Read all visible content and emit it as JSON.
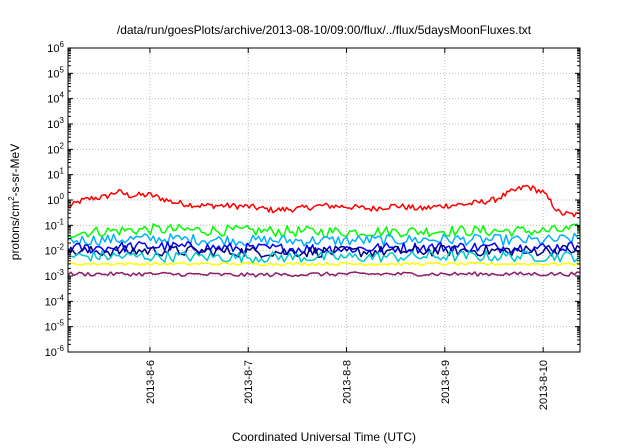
{
  "chart_data": {
    "type": "line",
    "title": "/data/run/goesPlots/archive/2013-08-10/09:00/flux/../flux/5daysMoonFluxes.txt",
    "xlabel": "Coordinated Universal Time (UTC)",
    "ylabel": "protons/cm2-s-sr-MeV",
    "yscale": "log",
    "ylim": [
      1e-06,
      1000000.0
    ],
    "y_ticks": [
      {
        "exp": "-6"
      },
      {
        "exp": "-5"
      },
      {
        "exp": "-4"
      },
      {
        "exp": "-3"
      },
      {
        "exp": "-2"
      },
      {
        "exp": "-1"
      },
      {
        "exp": "0"
      },
      {
        "exp": "1"
      },
      {
        "exp": "2"
      },
      {
        "exp": "3"
      },
      {
        "exp": "4"
      },
      {
        "exp": "5"
      },
      {
        "exp": "6"
      }
    ],
    "y_tick_base": "10",
    "xlim": [
      "2013-08-05T04:00",
      "2013-08-10T09:00"
    ],
    "x_ticks": [
      "2013-8-6",
      "2013-8-7",
      "2013-8-8",
      "2013-8-9",
      "2013-8-10"
    ],
    "x_tick_dates": [
      "2013-08-06T00:00",
      "2013-08-07T00:00",
      "2013-08-08T00:00",
      "2013-08-09T00:00",
      "2013-08-10T00:00"
    ],
    "grid": true,
    "legend": "none",
    "series": [
      {
        "color": "#ff0000",
        "width": 1.5,
        "x": [
          "2013-08-05T04:00",
          "2013-08-05T07:00",
          "2013-08-05T10:00",
          "2013-08-05T13:00",
          "2013-08-05T16:00",
          "2013-08-05T19:00",
          "2013-08-06T00:00",
          "2013-08-06T06:00",
          "2013-08-06T12:00",
          "2013-08-06T18:00",
          "2013-08-07T00:00",
          "2013-08-07T06:00",
          "2013-08-07T12:00",
          "2013-08-07T18:00",
          "2013-08-08T00:00",
          "2013-08-08T06:00",
          "2013-08-08T12:00",
          "2013-08-08T18:00",
          "2013-08-09T00:00",
          "2013-08-09T06:00",
          "2013-08-09T12:00",
          "2013-08-09T16:00",
          "2013-08-09T20:00",
          "2013-08-10T00:00",
          "2013-08-10T04:00",
          "2013-08-10T09:00"
        ],
        "values": [
          0.5,
          0.9,
          1.2,
          1.3,
          2.2,
          1.5,
          1.6,
          0.8,
          0.6,
          0.6,
          0.55,
          0.4,
          0.45,
          0.6,
          0.55,
          0.45,
          0.6,
          0.45,
          0.6,
          0.7,
          1.0,
          2.0,
          3.5,
          2.0,
          0.3,
          0.25
        ]
      },
      {
        "color": "#00ff00",
        "width": 1.5,
        "x": [
          "2013-08-05T04:00",
          "2013-08-06T00:00",
          "2013-08-07T00:00",
          "2013-08-08T00:00",
          "2013-08-09T00:00",
          "2013-08-10T00:00",
          "2013-08-10T09:00"
        ],
        "values": [
          0.05,
          0.07,
          0.06,
          0.055,
          0.06,
          0.06,
          0.07
        ]
      },
      {
        "color": "#00b0ff",
        "width": 1.5,
        "x": [
          "2013-08-05T04:00",
          "2013-08-06T00:00",
          "2013-08-07T00:00",
          "2013-08-08T00:00",
          "2013-08-09T00:00",
          "2013-08-10T00:00",
          "2013-08-10T09:00"
        ],
        "values": [
          0.025,
          0.03,
          0.025,
          0.025,
          0.028,
          0.025,
          0.03
        ]
      },
      {
        "color": "#0000ff",
        "width": 1.5,
        "x": [
          "2013-08-05T04:00",
          "2013-08-06T00:00",
          "2013-08-07T00:00",
          "2013-08-08T00:00",
          "2013-08-09T00:00",
          "2013-08-10T00:00",
          "2013-08-10T09:00"
        ],
        "values": [
          0.012,
          0.015,
          0.012,
          0.012,
          0.014,
          0.013,
          0.015
        ]
      },
      {
        "color": "#000080",
        "width": 1.5,
        "x": [
          "2013-08-05T04:00",
          "2013-08-06T00:00",
          "2013-08-07T00:00",
          "2013-08-08T00:00",
          "2013-08-09T00:00",
          "2013-08-10T00:00",
          "2013-08-10T09:00"
        ],
        "values": [
          0.009,
          0.01,
          0.009,
          0.009,
          0.01,
          0.01,
          0.011
        ]
      },
      {
        "color": "#00c8c8",
        "width": 1.5,
        "x": [
          "2013-08-05T04:00",
          "2013-08-06T00:00",
          "2013-08-07T00:00",
          "2013-08-08T00:00",
          "2013-08-09T00:00",
          "2013-08-10T00:00",
          "2013-08-10T09:00"
        ],
        "values": [
          0.006,
          0.006,
          0.0055,
          0.0055,
          0.006,
          0.006,
          0.006
        ]
      },
      {
        "color": "#ffff00",
        "width": 1.5,
        "x": [
          "2013-08-05T04:00",
          "2013-08-06T00:00",
          "2013-08-07T00:00",
          "2013-08-08T00:00",
          "2013-08-09T00:00",
          "2013-08-10T00:00",
          "2013-08-10T09:00"
        ],
        "values": [
          0.003,
          0.003,
          0.003,
          0.003,
          0.003,
          0.003,
          0.003
        ]
      },
      {
        "color": "#8b1a6b",
        "width": 1.5,
        "x": [
          "2013-08-05T04:00",
          "2013-08-06T00:00",
          "2013-08-07T00:00",
          "2013-08-08T00:00",
          "2013-08-09T00:00",
          "2013-08-10T00:00",
          "2013-08-10T09:00"
        ],
        "values": [
          0.0012,
          0.0012,
          0.0011,
          0.0012,
          0.0012,
          0.0012,
          0.0012
        ]
      }
    ]
  }
}
